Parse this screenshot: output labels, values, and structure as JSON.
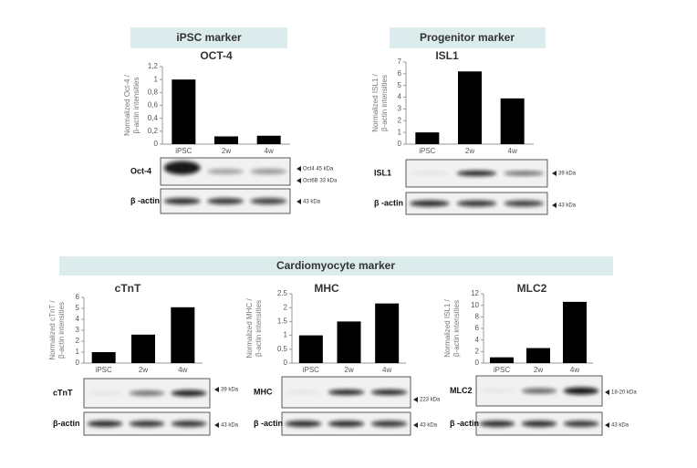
{
  "sections": [
    "iPSC marker",
    "Progenitor marker",
    "Cardiomyocyte marker"
  ],
  "chart_data": [
    {
      "type": "bar",
      "title": "OCT-4",
      "ylabel": [
        "Normalized Oct-4  /",
        "β-actin intensities"
      ],
      "color": "#000000",
      "categories": [
        "iPSC",
        "2w",
        "4w"
      ],
      "values": [
        1.0,
        0.12,
        0.13
      ],
      "ylim": [
        0,
        1.2
      ],
      "yticks": [
        0,
        {
          "value": 0.2,
          "label": "0,2"
        },
        {
          "value": 0.4,
          "label": "0,4"
        },
        {
          "value": 0.6,
          "label": "0,6"
        },
        {
          "value": 0.8,
          "label": "0,8"
        },
        1,
        {
          "value": 1.2,
          "label": "1,2"
        }
      ],
      "blots": [
        {
          "label": "Oct-4",
          "markers": [
            "Oct4 45 kDa",
            "Oct6B 33 kDa"
          ]
        },
        {
          "label": "β -actin",
          "markers": [
            "43 kDa"
          ]
        }
      ]
    },
    {
      "type": "bar",
      "title": "ISL1",
      "ylabel": [
        "Normalized ISL1  /",
        "β-actin intensities"
      ],
      "color": "#000000",
      "categories": [
        "iPSC",
        "2w",
        "4w"
      ],
      "values": [
        1.0,
        6.2,
        3.9
      ],
      "ylim": [
        0,
        7
      ],
      "yticks": [
        0,
        1,
        2,
        3,
        4,
        5,
        6,
        7
      ],
      "blots": [
        {
          "label": "ISL1",
          "markers": [
            "39 kDa"
          ]
        },
        {
          "label": "β -actin",
          "markers": [
            "43 kDa"
          ]
        }
      ]
    },
    {
      "type": "bar",
      "title": "cTnT",
      "ylabel": [
        "Normalized cTnT  /",
        "β-actin intensities"
      ],
      "color": "#000000",
      "categories": [
        "iPSC",
        "2w",
        "4w"
      ],
      "values": [
        1.0,
        2.6,
        5.1
      ],
      "ylim": [
        0,
        6
      ],
      "yticks": [
        0,
        1,
        2,
        3,
        4,
        5,
        6
      ],
      "blots": [
        {
          "label": "cTnT",
          "markers": [
            "39 kDa"
          ]
        },
        {
          "label": "β-actin",
          "markers": [
            "43 kDa"
          ]
        }
      ]
    },
    {
      "type": "bar",
      "title": "MHC",
      "ylabel": [
        "Normalized MHC  /",
        "β-actin intensities"
      ],
      "color": "#000000",
      "categories": [
        "iPSC",
        "2w",
        "4w"
      ],
      "values": [
        1.0,
        1.5,
        2.15
      ],
      "ylim": [
        0,
        2.5
      ],
      "yticks": [
        0,
        0.5,
        1,
        1.5,
        2,
        2.5
      ],
      "blots": [
        {
          "label": "MHC",
          "markers": [
            "223 kDa"
          ]
        },
        {
          "label": "β -actin",
          "markers": [
            "43 kDa"
          ]
        }
      ]
    },
    {
      "type": "bar",
      "title": "MLC2",
      "ylabel": [
        "Normalized ISL1  /",
        "β-actin intensities"
      ],
      "color": "#000000",
      "categories": [
        "iPSC",
        "2w",
        "4w"
      ],
      "values": [
        1.0,
        2.6,
        10.6
      ],
      "ylim": [
        0,
        12
      ],
      "yticks": [
        0,
        2,
        4,
        6,
        8,
        10,
        12
      ],
      "blots": [
        {
          "label": "MLC2",
          "markers": [
            "18-20 kDa"
          ]
        },
        {
          "label": "β -actin",
          "markers": [
            "43 kDa"
          ]
        }
      ]
    }
  ]
}
